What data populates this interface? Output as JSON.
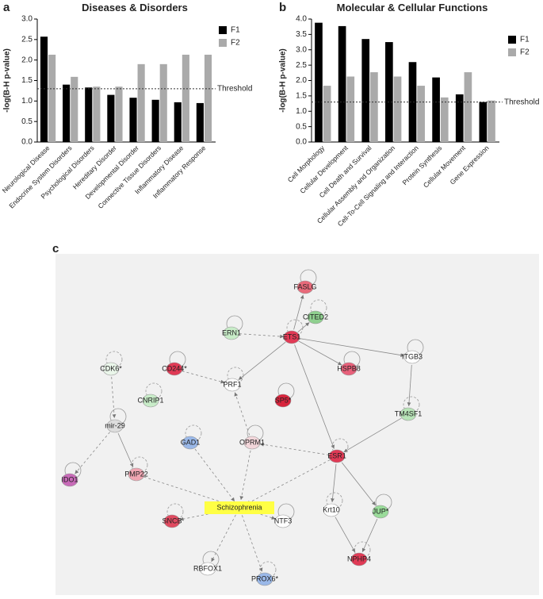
{
  "chart_data": [
    {
      "type": "bar",
      "panel": "a",
      "title": "Diseases & Disorders",
      "y_label": "-log(B-H p-value)",
      "categories": [
        "Neurological Disease",
        "Endocrine System Disorders",
        "Psychological Disorders",
        "Hereditary Disorder",
        "Developmental Disorder",
        "Connective Tissue Disorders",
        "Inflammatory Disease",
        "Inflammatory Response"
      ],
      "series": [
        {
          "name": "F1",
          "color": "#000000",
          "values": [
            2.57,
            1.4,
            1.33,
            1.15,
            1.08,
            1.03,
            0.97,
            0.95
          ]
        },
        {
          "name": "F2",
          "color": "#aaaaaa",
          "values": [
            2.13,
            1.59,
            1.35,
            1.35,
            1.9,
            1.9,
            2.13,
            2.13
          ]
        }
      ],
      "ylim": [
        0,
        3
      ],
      "yticks": [
        {
          "value": 0,
          "label": "0.0"
        },
        0.5,
        {
          "value": 1,
          "label": "1.0"
        },
        1.5,
        {
          "value": 2,
          "label": "2.0"
        },
        2.5,
        {
          "value": 3,
          "label": "3.0"
        }
      ],
      "threshold": {
        "value": 1.3,
        "label": "Threshold"
      },
      "legend": "top-right"
    },
    {
      "type": "bar",
      "panel": "b",
      "title": "Molecular & Cellular Functions",
      "y_label": "-log(B-H p-value)",
      "categories": [
        "Cell Morphology",
        "Cellular Development",
        "Cell Death and Survival",
        "Cellular Assembly and Organization",
        "Cell-To-Cell Signaling and Interaction",
        "Protein Synthesis",
        "Cellular Movement",
        "Gene Expression"
      ],
      "series": [
        {
          "name": "F1",
          "color": "#000000",
          "values": [
            3.88,
            3.77,
            3.35,
            3.25,
            2.6,
            2.1,
            1.55,
            1.3
          ]
        },
        {
          "name": "F2",
          "color": "#aaaaaa",
          "values": [
            1.83,
            2.13,
            2.27,
            2.13,
            1.83,
            1.45,
            2.27,
            1.35
          ]
        }
      ],
      "ylim": [
        0,
        4
      ],
      "yticks": [
        {
          "value": 0,
          "label": "0.0"
        },
        0.5,
        {
          "value": 1,
          "label": "1.0"
        },
        1.5,
        {
          "value": 2,
          "label": "2.0"
        },
        2.5,
        {
          "value": 3,
          "label": "3.0"
        },
        3.5,
        {
          "value": 4,
          "label": "4.0"
        }
      ],
      "threshold": {
        "value": 1.3,
        "label": "Threshold"
      },
      "legend": "top-right"
    }
  ],
  "network": {
    "panel": "c",
    "nodes": [
      {
        "label": "FASLG"
      },
      {
        "label": "CITED2"
      },
      {
        "label": "ERN1"
      },
      {
        "label": "ETS1"
      },
      {
        "label": "ITGB3"
      },
      {
        "label": "CDK6*"
      },
      {
        "label": "CD244*"
      },
      {
        "label": "PRF1"
      },
      {
        "label": "HSPB8"
      },
      {
        "label": "CNRIP1"
      },
      {
        "label": "SP5*"
      },
      {
        "label": "TM4SF1"
      },
      {
        "label": "mir-29"
      },
      {
        "label": "GAD1"
      },
      {
        "label": "OPRM1"
      },
      {
        "label": "ESR1"
      },
      {
        "label": "IDO1"
      },
      {
        "label": "PMP22"
      },
      {
        "label": "Schizophrenia"
      },
      {
        "label": "Krt10"
      },
      {
        "label": "JUP*"
      },
      {
        "label": "SNCB"
      },
      {
        "label": "NTF3"
      },
      {
        "label": "NPHP4"
      },
      {
        "label": "RBFOX1"
      },
      {
        "label": "PROX6*"
      }
    ]
  }
}
